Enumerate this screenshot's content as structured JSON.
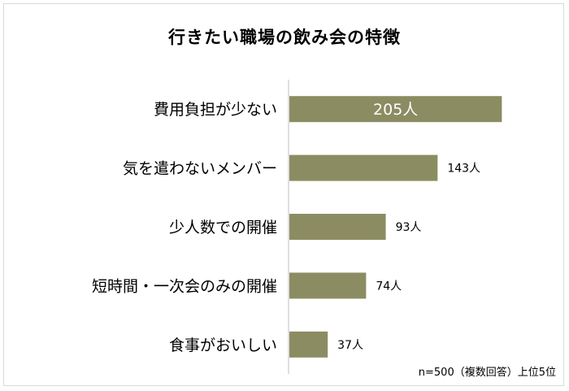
{
  "chart_data": {
    "type": "bar",
    "orientation": "horizontal",
    "title": "行きたい職場の飲み会の特徴",
    "categories": [
      "費用負担が少ない",
      "気を遣わないメンバー",
      "少人数での開催",
      "短時間・一次会のみの開催",
      "食事がおいしい"
    ],
    "values": [
      205,
      143,
      93,
      74,
      37
    ],
    "data_labels": [
      "205人",
      "143人",
      "93人",
      "74人",
      "37人"
    ],
    "unit": "人",
    "note": "n=500（複数回答）上位5位",
    "bar_color": "#8c8c62",
    "axis_color": "#bfbfbf",
    "grid": false,
    "legend": "none"
  }
}
